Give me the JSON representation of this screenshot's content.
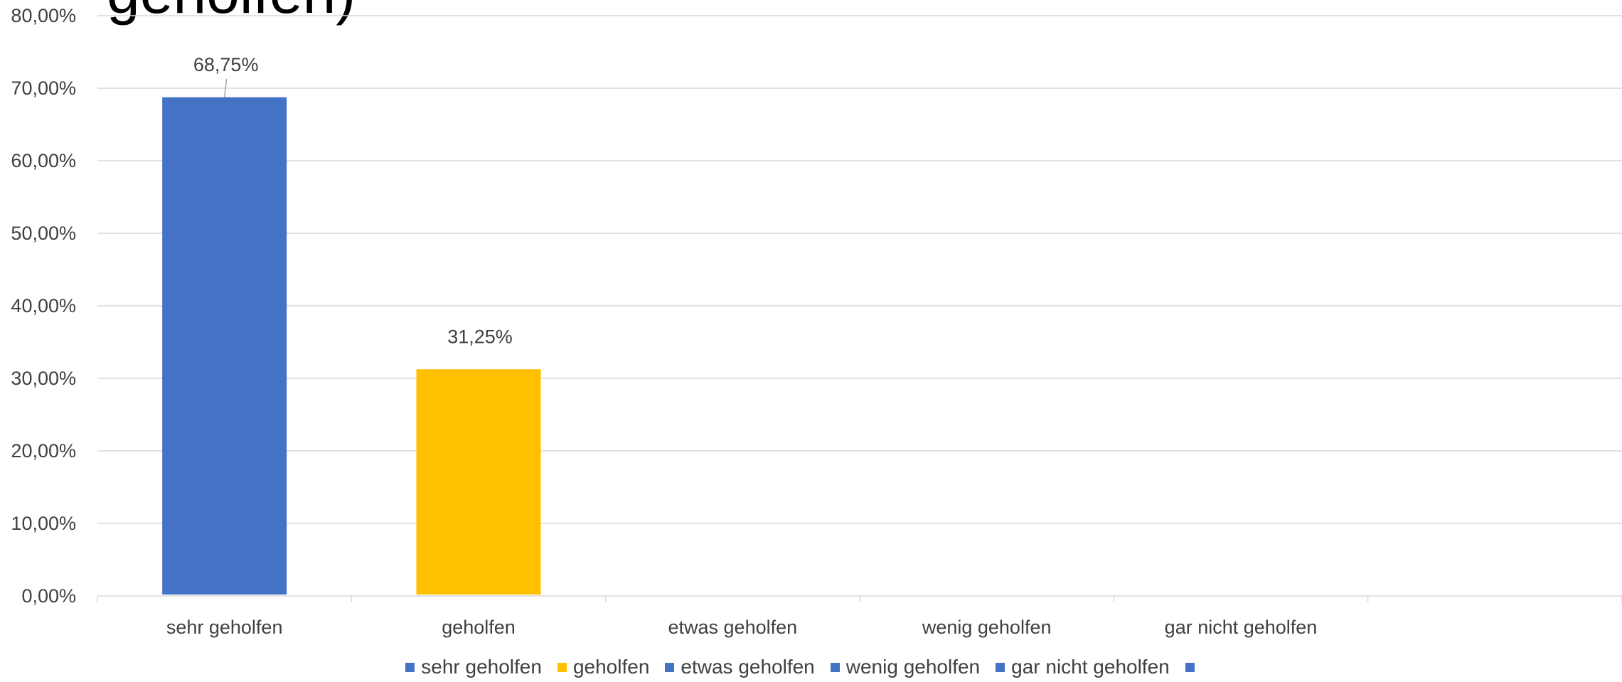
{
  "chart_data": {
    "type": "bar",
    "title_fragment": "geholfen)",
    "categories": [
      "sehr geholfen",
      "geholfen",
      "etwas geholfen",
      "wenig geholfen",
      "gar nicht geholfen",
      ""
    ],
    "values": [
      68.75,
      31.25,
      null,
      null,
      null,
      null
    ],
    "data_labels": [
      "68,75%",
      "31,25%",
      "",
      "",
      "",
      ""
    ],
    "bar_colors": [
      "#4472C4",
      "#FFC000",
      "#4472C4",
      "#4472C4",
      "#4472C4",
      "#4472C4"
    ],
    "ylim": [
      0,
      80
    ],
    "y_ticks": [
      0,
      10,
      20,
      30,
      40,
      50,
      60,
      70,
      80
    ],
    "y_tick_labels": [
      "0,00%",
      "10,00%",
      "20,00%",
      "30,00%",
      "40,00%",
      "50,00%",
      "60,00%",
      "70,00%",
      "80,00%"
    ],
    "grid": true,
    "legend_position": "bottom",
    "legend": [
      {
        "label": "sehr geholfen",
        "color": "#4472C4"
      },
      {
        "label": "geholfen",
        "color": "#FFC000"
      },
      {
        "label": "etwas geholfen",
        "color": "#4472C4"
      },
      {
        "label": "wenig geholfen",
        "color": "#4472C4"
      },
      {
        "label": "gar nicht geholfen",
        "color": "#4472C4"
      },
      {
        "label": "",
        "color": "#4472C4"
      }
    ]
  }
}
